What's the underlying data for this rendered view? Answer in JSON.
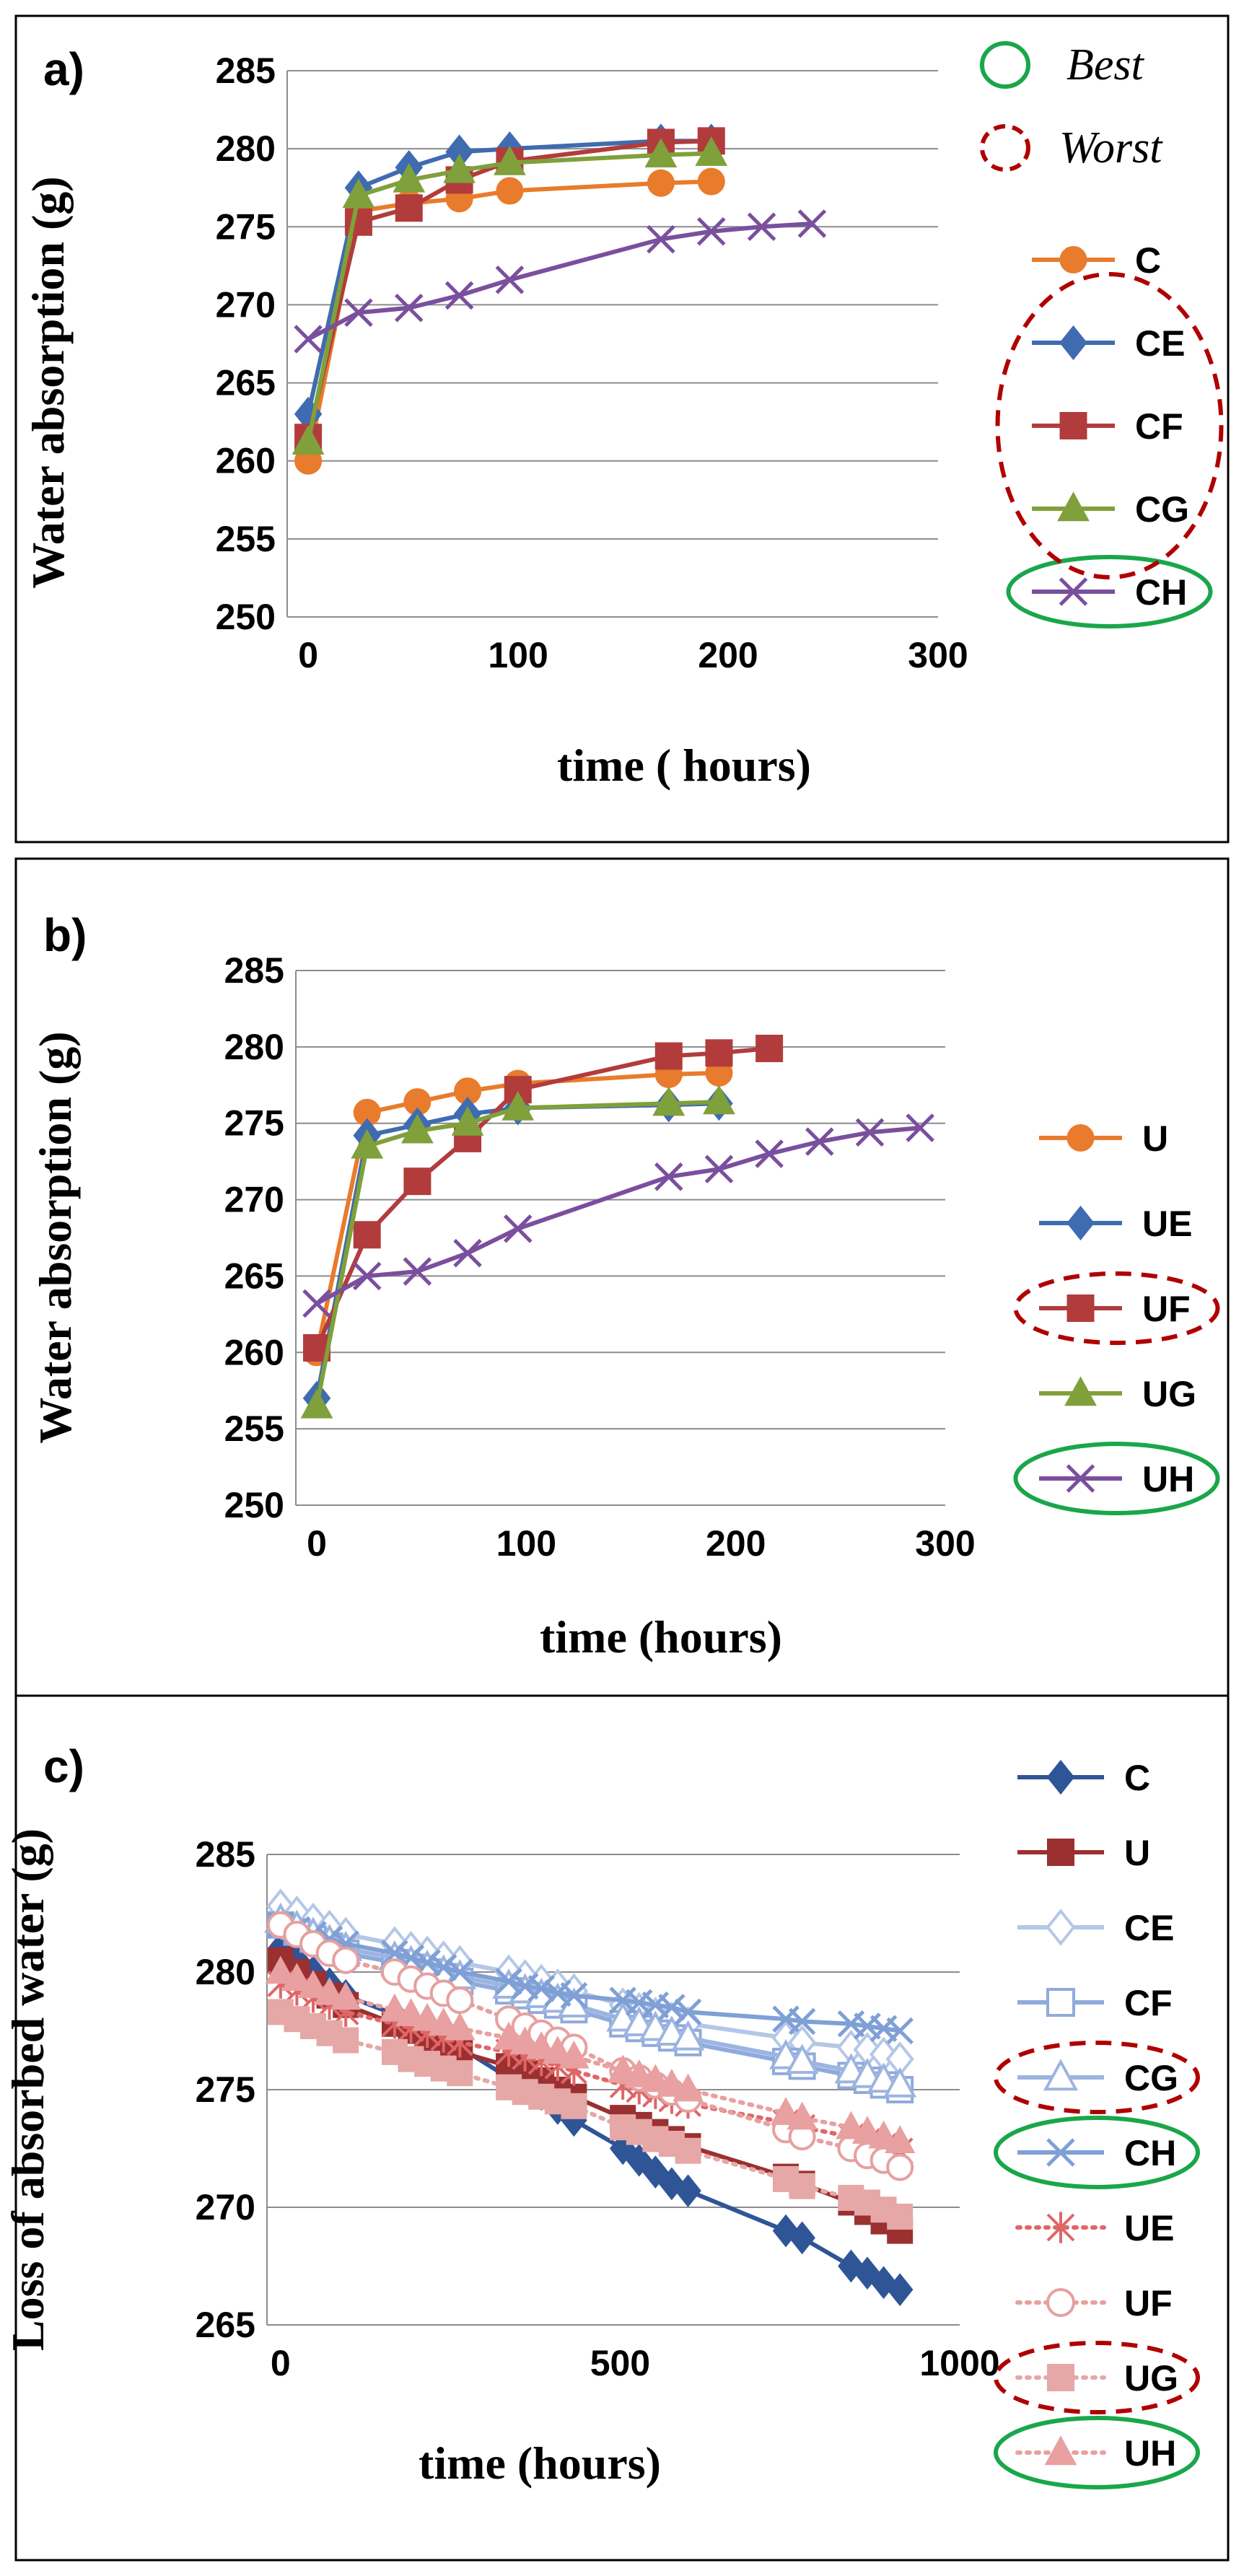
{
  "key": {
    "best": "Best",
    "worst": "Worst",
    "best_color": "#1aa64a",
    "worst_color": "#b00000"
  },
  "chart_data": [
    {
      "panel": "a)",
      "type": "line",
      "xlabel": "time ( hours)",
      "ylabel": "Water absorption (g)",
      "xlim": [
        -10,
        300
      ],
      "ylim": [
        250,
        285
      ],
      "xticks": [
        0,
        100,
        200,
        300
      ],
      "yticks": [
        250,
        255,
        260,
        265,
        270,
        275,
        280,
        285
      ],
      "series": [
        {
          "name": "C",
          "color": "#E97B2C",
          "marker": "circle",
          "x": [
            0,
            24,
            48,
            72,
            96,
            168,
            192
          ],
          "y": [
            260.0,
            276.0,
            276.5,
            276.8,
            277.3,
            277.8,
            277.9
          ]
        },
        {
          "name": "CE",
          "color": "#3F6BB0",
          "marker": "diamond",
          "x": [
            0,
            24,
            48,
            72,
            96,
            168,
            192
          ],
          "y": [
            263.0,
            277.5,
            278.8,
            279.8,
            280.0,
            280.5,
            280.5
          ]
        },
        {
          "name": "CF",
          "color": "#B23C3C",
          "marker": "square",
          "x": [
            0,
            24,
            48,
            72,
            96,
            168,
            192
          ],
          "y": [
            261.5,
            275.3,
            276.2,
            278.0,
            279.2,
            280.4,
            280.5
          ]
        },
        {
          "name": "CG",
          "color": "#7FA03A",
          "marker": "triangle",
          "x": [
            0,
            24,
            48,
            72,
            96,
            168,
            192
          ],
          "y": [
            261.2,
            277.0,
            278.0,
            278.6,
            279.1,
            279.6,
            279.7
          ]
        },
        {
          "name": "CH",
          "color": "#7A4F9E",
          "marker": "x",
          "x": [
            0,
            24,
            48,
            72,
            96,
            168,
            192,
            216,
            240
          ],
          "y": [
            267.8,
            269.5,
            269.8,
            270.6,
            271.6,
            274.2,
            274.7,
            275.0,
            275.2
          ]
        }
      ],
      "legend_marks": {
        "best": [
          "CH"
        ],
        "worst": [
          "CE",
          "CF",
          "CG"
        ]
      }
    },
    {
      "panel": "b)",
      "type": "line",
      "xlabel": "time (hours)",
      "ylabel": "Water absorption (g)",
      "xlim": [
        -10,
        300
      ],
      "ylim": [
        250,
        285
      ],
      "xticks": [
        0,
        100,
        200,
        300
      ],
      "yticks": [
        250,
        255,
        260,
        265,
        270,
        275,
        280,
        285
      ],
      "series": [
        {
          "name": "U",
          "color": "#E97B2C",
          "marker": "circle",
          "x": [
            0,
            24,
            48,
            72,
            96,
            168,
            192
          ],
          "y": [
            260.0,
            275.7,
            276.4,
            277.1,
            277.6,
            278.2,
            278.3
          ]
        },
        {
          "name": "UE",
          "color": "#3F6BB0",
          "marker": "diamond",
          "x": [
            0,
            24,
            48,
            72,
            96,
            168,
            192
          ],
          "y": [
            257.0,
            274.2,
            274.9,
            275.6,
            276.0,
            276.2,
            276.3
          ]
        },
        {
          "name": "UF",
          "color": "#B23C3C",
          "marker": "square",
          "x": [
            0,
            24,
            48,
            72,
            96,
            168,
            192,
            216
          ],
          "y": [
            260.3,
            267.7,
            271.2,
            274.0,
            277.2,
            279.4,
            279.6,
            279.9
          ]
        },
        {
          "name": "UG",
          "color": "#7FA03A",
          "marker": "triangle",
          "x": [
            0,
            24,
            48,
            72,
            96,
            168,
            192
          ],
          "y": [
            256.5,
            273.5,
            274.5,
            275.0,
            276.0,
            276.3,
            276.4
          ]
        },
        {
          "name": "UH",
          "color": "#7A4F9E",
          "marker": "x",
          "x": [
            0,
            24,
            48,
            72,
            96,
            168,
            192,
            216,
            240,
            264,
            288
          ],
          "y": [
            263.2,
            265.0,
            265.3,
            266.5,
            268.1,
            271.5,
            272.0,
            273.0,
            273.8,
            274.4,
            274.7
          ]
        }
      ],
      "legend_marks": {
        "best": [
          "UH"
        ],
        "worst": [
          "UF"
        ]
      }
    },
    {
      "panel": "c)",
      "type": "line",
      "xlabel": "time (hours)",
      "ylabel": "Loss of absorbed water (g)",
      "xlim": [
        -20,
        1000
      ],
      "ylim": [
        265,
        285
      ],
      "xticks": [
        0,
        500,
        1000
      ],
      "yticks": [
        265,
        270,
        275,
        280,
        285
      ],
      "series": [
        {
          "name": "C",
          "color": "#2F5597",
          "marker": "diamond-filled",
          "dash": false,
          "x": [
            0,
            24,
            48,
            72,
            96,
            168,
            192,
            216,
            240,
            264,
            336,
            360,
            384,
            408,
            432,
            504,
            528,
            552,
            576,
            600,
            744,
            768,
            840,
            864,
            888,
            912
          ],
          "y": [
            281.0,
            280.5,
            280.0,
            279.5,
            279.0,
            278.2,
            277.8,
            277.5,
            277.2,
            276.8,
            275.5,
            275.2,
            274.8,
            274.2,
            273.7,
            272.5,
            272.0,
            271.5,
            271.0,
            270.7,
            269.0,
            268.7,
            267.5,
            267.2,
            266.8,
            266.5
          ]
        },
        {
          "name": "U",
          "color": "#9B3030",
          "marker": "square-filled",
          "dash": false,
          "x": [
            0,
            24,
            48,
            72,
            96,
            168,
            192,
            216,
            240,
            264,
            336,
            360,
            384,
            408,
            432,
            504,
            528,
            552,
            576,
            600,
            744,
            768,
            840,
            864,
            888,
            912
          ],
          "y": [
            280.5,
            280.0,
            279.5,
            279.0,
            278.6,
            277.8,
            277.5,
            277.2,
            276.9,
            276.6,
            276.0,
            275.7,
            275.4,
            275.0,
            274.7,
            273.8,
            273.5,
            273.2,
            272.9,
            272.6,
            271.3,
            271.0,
            270.2,
            269.8,
            269.4,
            269.0
          ]
        },
        {
          "name": "CE",
          "color": "#B4C7E7",
          "marker": "diamond-open",
          "dash": false,
          "x": [
            0,
            24,
            48,
            72,
            96,
            168,
            192,
            216,
            240,
            264,
            336,
            360,
            384,
            408,
            432,
            504,
            528,
            552,
            576,
            600,
            744,
            768,
            840,
            864,
            888,
            912
          ],
          "y": [
            282.8,
            282.5,
            282.2,
            281.9,
            281.6,
            281.2,
            281.0,
            280.8,
            280.6,
            280.4,
            280.0,
            279.8,
            279.6,
            279.4,
            279.2,
            278.6,
            278.4,
            278.2,
            278.0,
            277.8,
            277.2,
            277.0,
            276.8,
            276.7,
            276.5,
            276.3
          ]
        },
        {
          "name": "CF",
          "color": "#8FAADC",
          "marker": "square-open",
          "dash": false,
          "x": [
            0,
            24,
            48,
            72,
            96,
            168,
            192,
            216,
            240,
            264,
            336,
            360,
            384,
            408,
            432,
            504,
            528,
            552,
            576,
            600,
            744,
            768,
            840,
            864,
            888,
            912
          ],
          "y": [
            282.0,
            281.7,
            281.4,
            281.1,
            280.8,
            280.4,
            280.2,
            280.0,
            279.8,
            279.6,
            279.2,
            279.0,
            278.8,
            278.6,
            278.4,
            277.8,
            277.6,
            277.4,
            277.2,
            277.0,
            276.2,
            276.0,
            275.6,
            275.4,
            275.2,
            275.0
          ]
        },
        {
          "name": "CG",
          "color": "#9DB4E0",
          "marker": "triangle-open",
          "dash": false,
          "x": [
            0,
            24,
            48,
            72,
            96,
            168,
            192,
            216,
            240,
            264,
            336,
            360,
            384,
            408,
            432,
            504,
            528,
            552,
            576,
            600,
            744,
            768,
            840,
            864,
            888,
            912
          ],
          "y": [
            282.2,
            281.9,
            281.6,
            281.3,
            281.0,
            280.6,
            280.4,
            280.2,
            280.0,
            279.8,
            279.4,
            279.2,
            279.0,
            278.8,
            278.6,
            278.0,
            277.8,
            277.6,
            277.4,
            277.2,
            276.4,
            276.2,
            275.8,
            275.6,
            275.4,
            275.2
          ]
        },
        {
          "name": "CH",
          "color": "#7FA0D6",
          "marker": "x",
          "dash": false,
          "x": [
            0,
            24,
            48,
            72,
            96,
            168,
            192,
            216,
            240,
            264,
            336,
            360,
            384,
            408,
            432,
            504,
            528,
            552,
            576,
            600,
            744,
            768,
            840,
            864,
            888,
            912
          ],
          "y": [
            282.0,
            281.8,
            281.6,
            281.4,
            281.2,
            280.8,
            280.6,
            280.4,
            280.2,
            280.0,
            279.6,
            279.4,
            279.3,
            279.1,
            279.0,
            278.8,
            278.7,
            278.6,
            278.5,
            278.3,
            278.0,
            277.9,
            277.8,
            277.7,
            277.6,
            277.5
          ]
        },
        {
          "name": "UE",
          "color": "#E06666",
          "marker": "asterisk",
          "dash": true,
          "x": [
            0,
            24,
            48,
            72,
            96,
            168,
            192,
            216,
            240,
            264,
            336,
            360,
            384,
            408,
            432,
            504,
            528,
            552,
            576,
            600,
            744,
            768,
            840,
            864,
            888,
            912
          ],
          "y": [
            279.5,
            279.2,
            278.9,
            278.6,
            278.3,
            277.8,
            277.6,
            277.4,
            277.2,
            277.0,
            276.6,
            276.4,
            276.2,
            276.0,
            275.8,
            275.2,
            275.0,
            274.8,
            274.6,
            274.4,
            273.6,
            273.4,
            273.0,
            272.8,
            272.6,
            272.4
          ]
        },
        {
          "name": "UF",
          "color": "#E6A0A0",
          "marker": "circle-open",
          "dash": true,
          "x": [
            0,
            24,
            48,
            72,
            96,
            168,
            192,
            216,
            240,
            264,
            336,
            360,
            384,
            408,
            432,
            504,
            528,
            552,
            576,
            600,
            744,
            768,
            840,
            864,
            888,
            912
          ],
          "y": [
            282.0,
            281.6,
            281.2,
            280.8,
            280.5,
            280.0,
            279.7,
            279.4,
            279.1,
            278.8,
            278.0,
            277.7,
            277.4,
            277.1,
            276.8,
            275.8,
            275.5,
            275.2,
            274.9,
            274.6,
            273.3,
            273.0,
            272.5,
            272.2,
            272.0,
            271.7
          ]
        },
        {
          "name": "UG",
          "color": "#E6A7A7",
          "marker": "square-filled",
          "dash": true,
          "x": [
            0,
            24,
            48,
            72,
            96,
            168,
            192,
            216,
            240,
            264,
            336,
            360,
            384,
            408,
            432,
            504,
            528,
            552,
            576,
            600,
            744,
            768,
            840,
            864,
            888,
            912
          ],
          "y": [
            278.3,
            278.0,
            277.7,
            277.4,
            277.1,
            276.6,
            276.3,
            276.1,
            275.9,
            275.7,
            275.1,
            274.9,
            274.7,
            274.5,
            274.3,
            273.4,
            273.2,
            272.9,
            272.7,
            272.4,
            271.2,
            270.9,
            270.4,
            270.2,
            269.9,
            269.6
          ]
        },
        {
          "name": "UH",
          "color": "#E8A0A0",
          "marker": "triangle-filled",
          "dash": true,
          "x": [
            0,
            24,
            48,
            72,
            96,
            168,
            192,
            216,
            240,
            264,
            336,
            360,
            384,
            408,
            432,
            504,
            528,
            552,
            576,
            600,
            744,
            768,
            840,
            864,
            888,
            912
          ],
          "y": [
            280.0,
            279.7,
            279.4,
            279.1,
            278.9,
            278.4,
            278.2,
            278.0,
            277.8,
            277.6,
            277.2,
            277.0,
            276.8,
            276.6,
            276.4,
            275.8,
            275.6,
            275.4,
            275.2,
            275.0,
            274.0,
            273.8,
            273.4,
            273.2,
            273.0,
            272.8
          ]
        }
      ],
      "legend_marks": {
        "best": [
          "CH",
          "UH"
        ],
        "worst": [
          "CG",
          "UG"
        ]
      }
    }
  ]
}
